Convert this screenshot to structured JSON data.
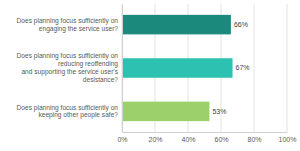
{
  "chart_data": {
    "type": "bar",
    "orientation": "horizontal",
    "categories": [
      "Does planning focus sufficiently on\nengaging the service user?",
      "Does planning focus sufficiently on\nreducing reoffending\nand supporting the service user's\ndesistance?",
      "Does planning focus sufficiently on\nkeeping other people safe?"
    ],
    "values": [
      66,
      67,
      53
    ],
    "value_labels": [
      "66%",
      "67%",
      "53%"
    ],
    "colors": [
      "#1b8a7c",
      "#2cc1b1",
      "#9bd06b"
    ],
    "xlim": [
      0,
      100
    ],
    "xticks": [
      {
        "value": 0,
        "label": "0%"
      },
      {
        "value": 20,
        "label": "20%"
      },
      {
        "value": 40,
        "label": "40%"
      },
      {
        "value": 60,
        "label": "60%"
      },
      {
        "value": 80,
        "label": "80%"
      },
      {
        "value": 100,
        "label": "100%"
      }
    ],
    "grid": true,
    "data_labels": true
  }
}
